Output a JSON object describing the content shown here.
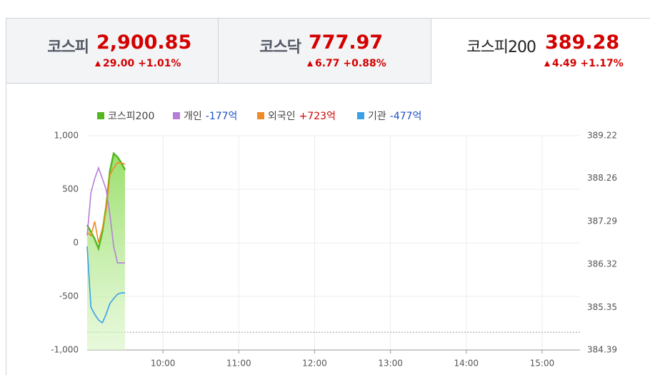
{
  "tabs": [
    {
      "name": "코스피",
      "value": "2,900.85",
      "change": "29.00 +1.01%"
    },
    {
      "name": "코스닥",
      "value": "777.97",
      "change": "6.77 +0.88%"
    },
    {
      "name": "코스피200",
      "value": "389.28",
      "change": "4.49 +1.17%"
    }
  ],
  "chart_data": {
    "type": "line",
    "x": [
      540,
      543,
      546,
      549,
      552,
      555,
      558,
      561,
      564,
      567,
      570
    ],
    "xlim": [
      540,
      930
    ],
    "xticks": [
      {
        "value": 600,
        "label": "10:00"
      },
      {
        "value": 660,
        "label": "11:00"
      },
      {
        "value": 720,
        "label": "12:00"
      },
      {
        "value": 780,
        "label": "13:00"
      },
      {
        "value": 840,
        "label": "14:00"
      },
      {
        "value": 900,
        "label": "15:00"
      }
    ],
    "ylim": [
      -1000,
      1000
    ],
    "yticks": [
      {
        "value": -1000,
        "label": "-1,000"
      },
      -500,
      0,
      500,
      {
        "value": 1000,
        "label": "1,000"
      }
    ],
    "y2lim": [
      384.39,
      389.22
    ],
    "y2ticks": [
      384.39,
      385.35,
      386.32,
      387.29,
      388.26,
      389.22
    ],
    "baseline_y2": 384.79,
    "grid": true,
    "series": [
      {
        "name": "코스피200",
        "color": "#52b81e",
        "axis": "y2",
        "area": true,
        "values": [
          387.21,
          387.05,
          386.89,
          386.68,
          387.05,
          387.61,
          388.42,
          388.82,
          388.74,
          388.61,
          388.45
        ]
      },
      {
        "name": "개인",
        "summary": "-177억",
        "summary_color": "#1d4fc4",
        "color": "#b57fd9",
        "values": [
          67,
          467,
          600,
          700,
          600,
          500,
          267,
          -33,
          -187,
          -187,
          -187
        ]
      },
      {
        "name": "외국인",
        "summary": "+723억",
        "summary_color": "#d40000",
        "color": "#f08a24",
        "values": [
          100,
          67,
          200,
          0,
          133,
          300,
          633,
          700,
          747,
          747,
          733
        ]
      },
      {
        "name": "기관",
        "summary": "-477억",
        "summary_color": "#1d4fc4",
        "color": "#3ba0e8",
        "values": [
          -33,
          -600,
          -667,
          -720,
          -747,
          -667,
          -567,
          -520,
          -480,
          -467,
          -467
        ]
      }
    ]
  }
}
